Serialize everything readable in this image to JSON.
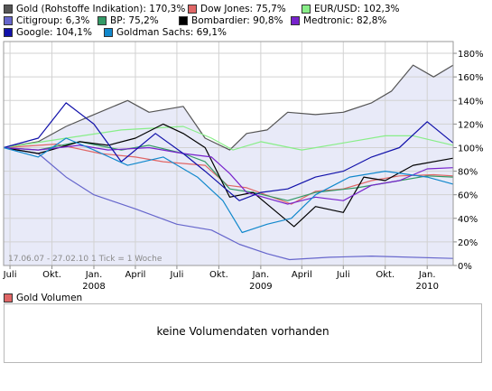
{
  "legend": [
    {
      "label": "Gold (Rohstoffe Indikation): 170,3%",
      "color": "#555555"
    },
    {
      "label": "Dow Jones: 75,7%",
      "color": "#e06666"
    },
    {
      "label": "EUR/USD: 102,3%",
      "color": "#88ee88"
    },
    {
      "label": "Citigroup: 6,3%",
      "color": "#6666cc"
    },
    {
      "label": "BP: 75,2%",
      "color": "#339966"
    },
    {
      "label": "Bombardier: 90,8%",
      "color": "#000000"
    },
    {
      "label": "Medtronic: 82,8%",
      "color": "#7722cc"
    },
    {
      "label": "Google: 104,1%",
      "color": "#1111aa"
    },
    {
      "label": "Goldman Sachs: 69,1%",
      "color": "#1188cc"
    }
  ],
  "range_label": "17.06.07 - 27.02.10   1 Tick = 1 Woche",
  "volume": {
    "legend_label": "Gold Volumen",
    "message": "keine Volumendaten vorhanden"
  },
  "chart_data": {
    "type": "line",
    "x_range": [
      "2007-06-17",
      "2010-02-27"
    ],
    "x_tick_labels": [
      "Juli",
      "Okt.",
      "Jan.",
      "April",
      "Juli",
      "Okt.",
      "Jan.",
      "April",
      "Juli",
      "Okt.",
      "Jan."
    ],
    "x_year_labels": [
      "2008",
      "2009",
      "2010"
    ],
    "y_tick_labels": [
      "0%",
      "20%",
      "40%",
      "60%",
      "80%",
      "100%",
      "120%",
      "140%",
      "160%",
      "180%"
    ],
    "ylim": [
      0,
      190
    ],
    "grid": true,
    "legend_position": "top",
    "series": [
      {
        "name": "Gold (Rohstoffe Indikation): 170,3%",
        "color": "#555555",
        "fill": "#e8eaf8",
        "x": [
          "2007-06-17",
          "2007-09-01",
          "2007-11-01",
          "2008-01-01",
          "2008-03-15",
          "2008-05-01",
          "2008-07-15",
          "2008-09-01",
          "2008-10-25",
          "2008-12-01",
          "2009-01-15",
          "2009-03-01",
          "2009-05-01",
          "2009-07-01",
          "2009-09-01",
          "2009-10-15",
          "2009-12-01",
          "2010-01-15",
          "2010-02-27"
        ],
        "values": [
          100,
          105,
          118,
          128,
          140,
          130,
          135,
          108,
          98,
          112,
          115,
          130,
          128,
          130,
          138,
          148,
          170,
          160,
          170
        ]
      },
      {
        "name": "Dow Jones: 75,7%",
        "color": "#e06666",
        "x": [
          "2007-06-17",
          "2007-10-10",
          "2008-01-15",
          "2008-04-01",
          "2008-06-01",
          "2008-09-01",
          "2008-10-20",
          "2008-12-01",
          "2009-03-09",
          "2009-05-01",
          "2009-07-01",
          "2009-09-01",
          "2009-11-01",
          "2010-01-15",
          "2010-02-27"
        ],
        "values": [
          100,
          103,
          95,
          92,
          88,
          85,
          68,
          66,
          52,
          63,
          65,
          72,
          76,
          77,
          76
        ]
      },
      {
        "name": "EUR/USD: 102,3%",
        "color": "#88ee88",
        "x": [
          "2007-06-17",
          "2007-11-01",
          "2008-03-01",
          "2008-07-15",
          "2008-09-15",
          "2008-11-01",
          "2009-01-01",
          "2009-04-01",
          "2009-07-01",
          "2009-10-01",
          "2009-12-01",
          "2010-02-27"
        ],
        "values": [
          100,
          108,
          115,
          118,
          108,
          98,
          105,
          98,
          104,
          110,
          110,
          102
        ]
      },
      {
        "name": "Citigroup: 6,3%",
        "color": "#6666cc",
        "x": [
          "2007-06-17",
          "2007-09-01",
          "2007-11-01",
          "2008-01-01",
          "2008-04-01",
          "2008-07-01",
          "2008-09-15",
          "2008-11-15",
          "2009-01-15",
          "2009-03-05",
          "2009-06-01",
          "2009-09-01",
          "2010-02-27"
        ],
        "values": [
          100,
          95,
          75,
          60,
          48,
          35,
          30,
          18,
          10,
          5,
          7,
          8,
          6
        ]
      },
      {
        "name": "BP: 75,2%",
        "color": "#339966",
        "x": [
          "2007-06-17",
          "2007-09-01",
          "2007-12-01",
          "2008-03-01",
          "2008-05-01",
          "2008-07-15",
          "2008-09-01",
          "2008-10-25",
          "2008-12-15",
          "2009-03-01",
          "2009-05-01",
          "2009-08-01",
          "2009-11-01",
          "2010-01-01",
          "2010-02-27"
        ],
        "values": [
          100,
          98,
          105,
          98,
          102,
          95,
          88,
          65,
          62,
          55,
          62,
          66,
          72,
          76,
          75
        ]
      },
      {
        "name": "Bombardier: 90,8%",
        "color": "#000000",
        "x": [
          "2007-06-17",
          "2007-09-01",
          "2007-12-01",
          "2008-02-01",
          "2008-04-01",
          "2008-06-01",
          "2008-07-15",
          "2008-09-01",
          "2008-10-25",
          "2008-12-15",
          "2009-02-15",
          "2009-03-15",
          "2009-05-01",
          "2009-07-01",
          "2009-08-15",
          "2009-10-01",
          "2009-12-01",
          "2010-02-27"
        ],
        "values": [
          100,
          95,
          105,
          102,
          108,
          120,
          112,
          100,
          58,
          62,
          42,
          33,
          50,
          45,
          75,
          72,
          85,
          91
        ]
      },
      {
        "name": "Medtronic: 82,8%",
        "color": "#7722cc",
        "x": [
          "2007-06-17",
          "2007-09-01",
          "2007-12-01",
          "2008-02-01",
          "2008-05-01",
          "2008-07-15",
          "2008-09-15",
          "2008-10-25",
          "2008-12-01",
          "2009-03-01",
          "2009-05-01",
          "2009-07-01",
          "2009-09-01",
          "2009-11-01",
          "2010-01-01",
          "2010-02-27"
        ],
        "values": [
          100,
          98,
          102,
          98,
          100,
          95,
          92,
          78,
          62,
          52,
          58,
          55,
          68,
          72,
          82,
          83
        ]
      },
      {
        "name": "Google: 104,1%",
        "color": "#1111aa",
        "x": [
          "2007-06-17",
          "2007-09-01",
          "2007-11-01",
          "2008-01-01",
          "2008-03-01",
          "2008-05-15",
          "2008-07-15",
          "2008-09-01",
          "2008-11-15",
          "2009-01-01",
          "2009-03-01",
          "2009-05-01",
          "2009-07-01",
          "2009-09-01",
          "2009-11-01",
          "2010-01-01",
          "2010-02-27"
        ],
        "values": [
          100,
          108,
          138,
          120,
          88,
          112,
          95,
          80,
          55,
          62,
          65,
          75,
          80,
          92,
          100,
          122,
          104
        ]
      },
      {
        "name": "Goldman Sachs: 69,1%",
        "color": "#1188cc",
        "x": [
          "2007-06-17",
          "2007-09-01",
          "2007-11-01",
          "2008-01-01",
          "2008-03-15",
          "2008-06-01",
          "2008-08-15",
          "2008-10-10",
          "2008-11-21",
          "2009-01-15",
          "2009-03-09",
          "2009-05-01",
          "2009-07-15",
          "2009-10-01",
          "2010-01-01",
          "2010-02-27"
        ],
        "values": [
          100,
          92,
          108,
          98,
          85,
          92,
          75,
          55,
          28,
          35,
          40,
          60,
          75,
          80,
          75,
          69
        ]
      }
    ]
  }
}
